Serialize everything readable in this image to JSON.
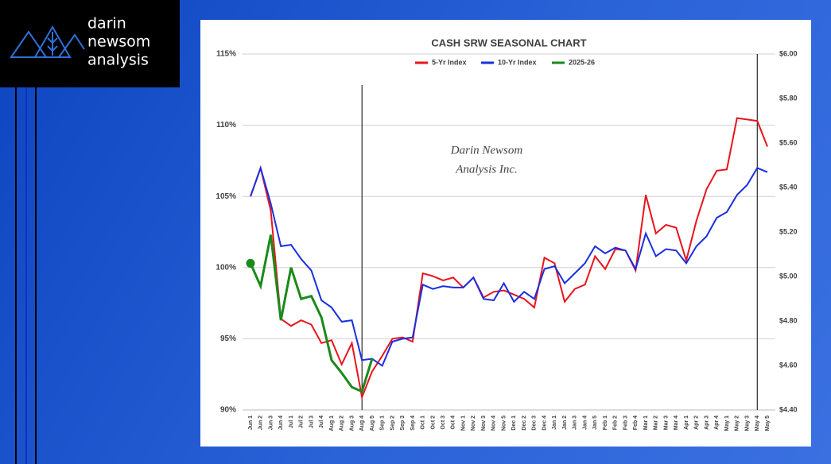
{
  "logo": {
    "lines": [
      "darin",
      "newsom",
      "analysis"
    ]
  },
  "chart_data": {
    "type": "line",
    "title": "CASH SRW SEASONAL CHART",
    "watermark": [
      "Darin Newsom",
      "Analysis Inc."
    ],
    "categories": [
      "Jun 1",
      "Jun 2",
      "Jun 3",
      "Jun 4",
      "Jul 1",
      "Jul 2",
      "Jul 3",
      "Jul 4",
      "Aug 1",
      "Aug 2",
      "Aug 3",
      "Aug 4",
      "Aug 5",
      "Sep 1",
      "Sep 2",
      "Sep 3",
      "Sep 4",
      "Oct 1",
      "Oct 2",
      "Oct 3",
      "Oct 4",
      "Nov 1",
      "Nov 2",
      "Nov 3",
      "Nov 4",
      "Nov 5",
      "Dec 1",
      "Dec 2",
      "Dec 3",
      "Dec 4",
      "Jan 1",
      "Jan 2",
      "Jan 3",
      "Jan 4",
      "Jan 5",
      "Feb 1",
      "Feb 2",
      "Feb 3",
      "Feb 4",
      "Mar 1",
      "Mar 2",
      "Mar 3",
      "Mar 4",
      "Apr 1",
      "Apr 2",
      "Apr 3",
      "Apr 4",
      "May 1",
      "May 2",
      "May 3",
      "May 4",
      "May 5"
    ],
    "series": [
      {
        "name": "5-Yr Index",
        "color": "#e8141c",
        "values": [
          105,
          107,
          104,
          96.4,
          95.9,
          96.3,
          96.0,
          94.7,
          94.9,
          93.2,
          94.7,
          90.9,
          92.7,
          93.8,
          95.0,
          95.1,
          94.8,
          99.6,
          99.4,
          99.1,
          99.3,
          98.6,
          99.3,
          97.9,
          98.3,
          98.4,
          98.1,
          97.8,
          97.2,
          100.7,
          100.3,
          97.6,
          98.5,
          98.8,
          100.8,
          99.9,
          101.3,
          101.2,
          99.8,
          105.1,
          102.4,
          103.0,
          102.8,
          100.5,
          103.3,
          105.5,
          106.8,
          106.9,
          110.5,
          110.4,
          110.3,
          108.5
        ]
      },
      {
        "name": "10-Yr Index",
        "color": "#1a2fe0",
        "values": [
          105,
          107,
          104.5,
          101.5,
          101.6,
          100.6,
          99.8,
          97.7,
          97.2,
          96.2,
          96.3,
          93.5,
          93.6,
          93.1,
          94.8,
          95.0,
          95.1,
          98.8,
          98.5,
          98.7,
          98.6,
          98.6,
          99.3,
          97.8,
          97.7,
          98.9,
          97.6,
          98.3,
          97.8,
          99.9,
          100.1,
          98.9,
          99.6,
          100.3,
          101.5,
          101.0,
          101.4,
          101.2,
          99.9,
          102.4,
          100.8,
          101.3,
          101.2,
          100.3,
          101.5,
          102.2,
          103.5,
          103.9,
          105.1,
          105.8,
          107.0,
          106.7
        ]
      },
      {
        "name": "2025-26",
        "color": "#1a8a1a",
        "values": [
          100.3,
          98.7,
          102.3,
          96.3,
          100.0,
          97.8,
          98.0,
          96.5,
          93.5,
          92.6,
          91.6,
          91.3,
          93.6,
          null,
          null,
          null,
          null,
          null,
          null,
          null,
          null,
          null,
          null,
          null,
          null,
          null,
          null,
          null,
          null,
          null,
          null,
          null,
          null,
          null,
          null,
          null,
          null,
          null,
          null,
          null,
          null,
          null,
          null,
          null,
          null,
          null,
          null,
          null,
          null,
          null,
          null,
          null
        ]
      }
    ],
    "ylim": [
      90,
      115
    ],
    "yticks": [
      {
        "value": 90,
        "label": "90%"
      },
      {
        "value": 95,
        "label": "95%"
      },
      {
        "value": 100,
        "label": "100%"
      },
      {
        "value": 105,
        "label": "105%"
      },
      {
        "value": 110,
        "label": "110%"
      },
      {
        "value": 115,
        "label": "115%"
      }
    ],
    "y2lim": [
      4.4,
      6.0
    ],
    "y2ticks": [
      {
        "value": 4.4,
        "label": "$4.40"
      },
      {
        "value": 4.6,
        "label": "$4.60"
      },
      {
        "value": 4.8,
        "label": "$4.80"
      },
      {
        "value": 5.0,
        "label": "$5.00"
      },
      {
        "value": 5.2,
        "label": "$5.20"
      },
      {
        "value": 5.4,
        "label": "$5.40"
      },
      {
        "value": 5.6,
        "label": "$5.60"
      },
      {
        "value": 5.8,
        "label": "$5.80"
      },
      {
        "value": 6.0,
        "label": "$6.00"
      }
    ],
    "grid": true,
    "legend": "top"
  }
}
